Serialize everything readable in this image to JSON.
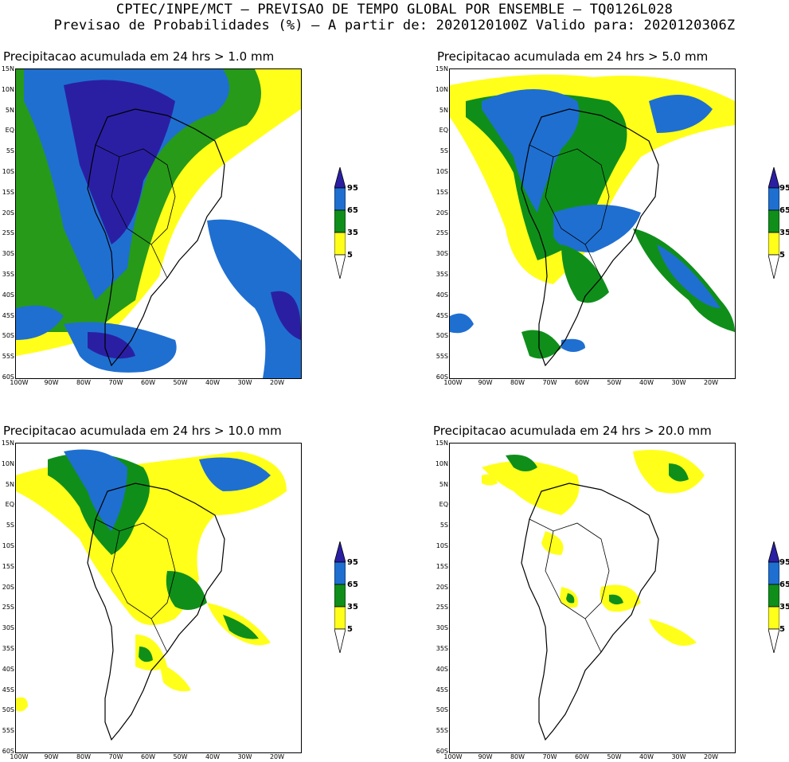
{
  "header": {
    "line1": "CPTEC/INPE/MCT – PREVISAO DE TEMPO GLOBAL POR ENSEMBLE – TQ0126L028",
    "line2": "Previsao de Probabilidades (%) –  A partir de: 2020120100Z  Valido para: 2020120306Z"
  },
  "panels": [
    {
      "title": "Precipitacao acumulada em 24 hrs > 1.0 mm"
    },
    {
      "title": "Precipitacao acumulada em 24 hrs > 5.0 mm"
    },
    {
      "title": "Precipitacao acumulada em 24 hrs > 10.0 mm"
    },
    {
      "title": "Precipitacao acumulada em 24 hrs > 20.0 mm"
    }
  ],
  "axes": {
    "lat_labels": [
      "15N",
      "10N",
      "5N",
      "EQ",
      "5S",
      "10S",
      "15S",
      "20S",
      "25S",
      "30S",
      "35S",
      "40S",
      "45S",
      "50S",
      "55S",
      "60S"
    ],
    "lon_labels": [
      "100W",
      "90W",
      "80W",
      "70W",
      "60W",
      "50W",
      "40W",
      "30W",
      "20W"
    ]
  },
  "colorbar": {
    "levels": [
      "95",
      "65",
      "35",
      "5"
    ],
    "colors": {
      "95": "#2a1fa3",
      "65": "#1f6fd1",
      "35": "#0f8f1a",
      "5": "#ffff1a"
    }
  }
}
